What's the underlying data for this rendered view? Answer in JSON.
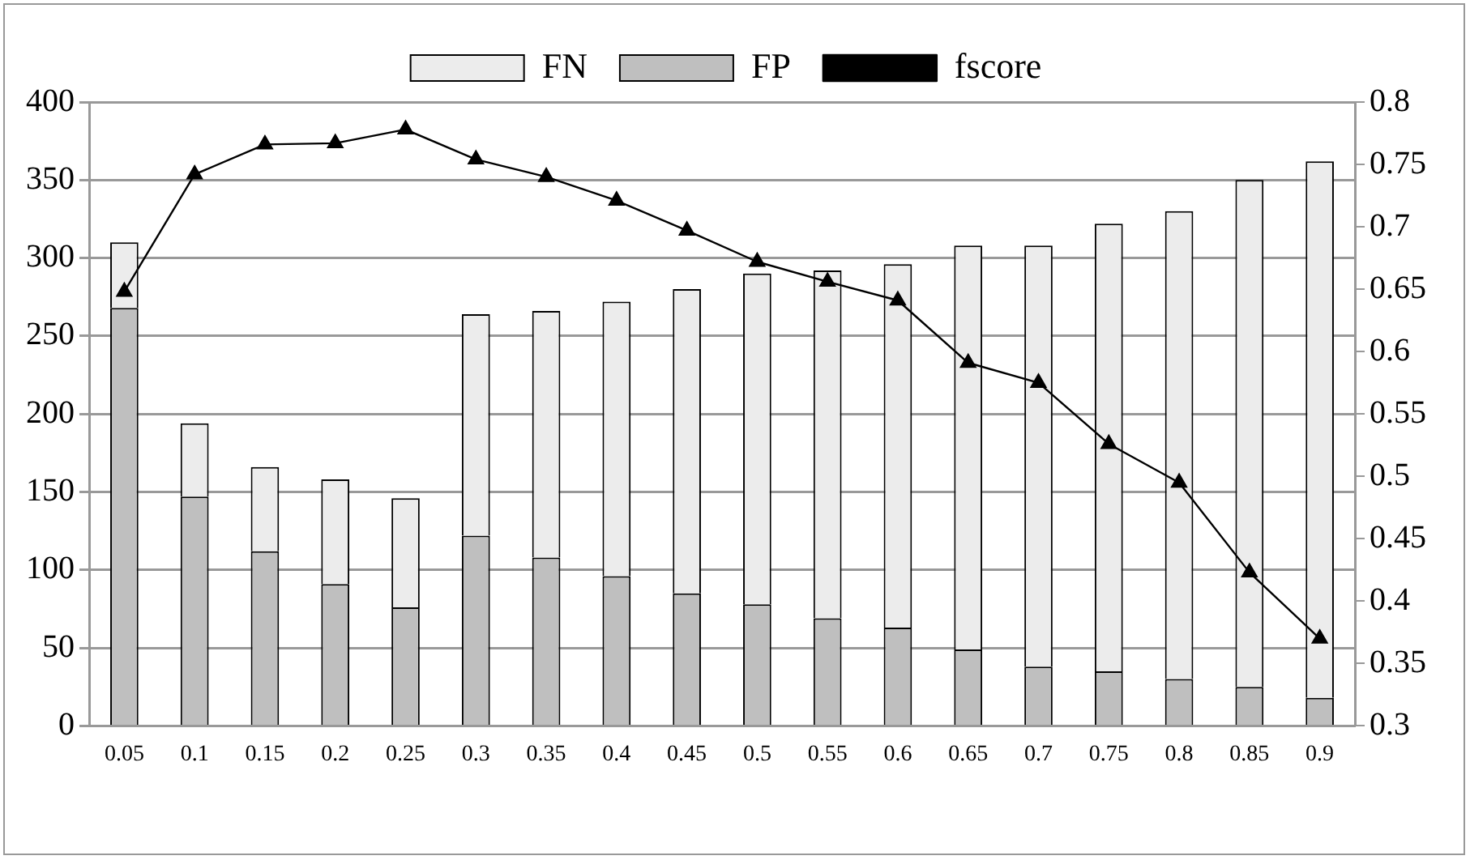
{
  "chart_data": {
    "type": "bar",
    "stacked": true,
    "categories": [
      "0.05",
      "0.1",
      "0.15",
      "0.2",
      "0.25",
      "0.3",
      "0.35",
      "0.4",
      "0.45",
      "0.5",
      "0.55",
      "0.6",
      "0.65",
      "0.7",
      "0.75",
      "0.8",
      "0.85",
      "0.9"
    ],
    "series": [
      {
        "name": "FP",
        "color": "#bfbfbf",
        "values": [
          268,
          147,
          112,
          91,
          76,
          122,
          108,
          96,
          85,
          78,
          69,
          63,
          49,
          38,
          35,
          30,
          25,
          18
        ]
      },
      {
        "name": "FN",
        "color": "#ececec",
        "values": [
          42,
          47,
          54,
          67,
          70,
          142,
          158,
          176,
          195,
          212,
          223,
          233,
          259,
          270,
          287,
          300,
          325,
          344
        ]
      },
      {
        "name": "fscore",
        "type": "line",
        "axis": "y2",
        "color": "#000000",
        "marker": "triangle",
        "values": [
          0.648,
          0.742,
          0.766,
          0.767,
          0.778,
          0.754,
          0.74,
          0.721,
          0.697,
          0.672,
          0.656,
          0.641,
          0.591,
          0.575,
          0.526,
          0.495,
          0.423,
          0.37
        ]
      }
    ],
    "ylim": [
      0,
      400
    ],
    "yticks": [
      0,
      50,
      100,
      150,
      200,
      250,
      300,
      350,
      400
    ],
    "y2lim": [
      0.3,
      0.8
    ],
    "y2ticks": [
      0.3,
      0.35,
      0.4,
      0.45,
      0.5,
      0.55,
      0.6,
      0.65,
      0.7,
      0.75,
      0.8
    ],
    "grid": "y",
    "legend": "top"
  }
}
